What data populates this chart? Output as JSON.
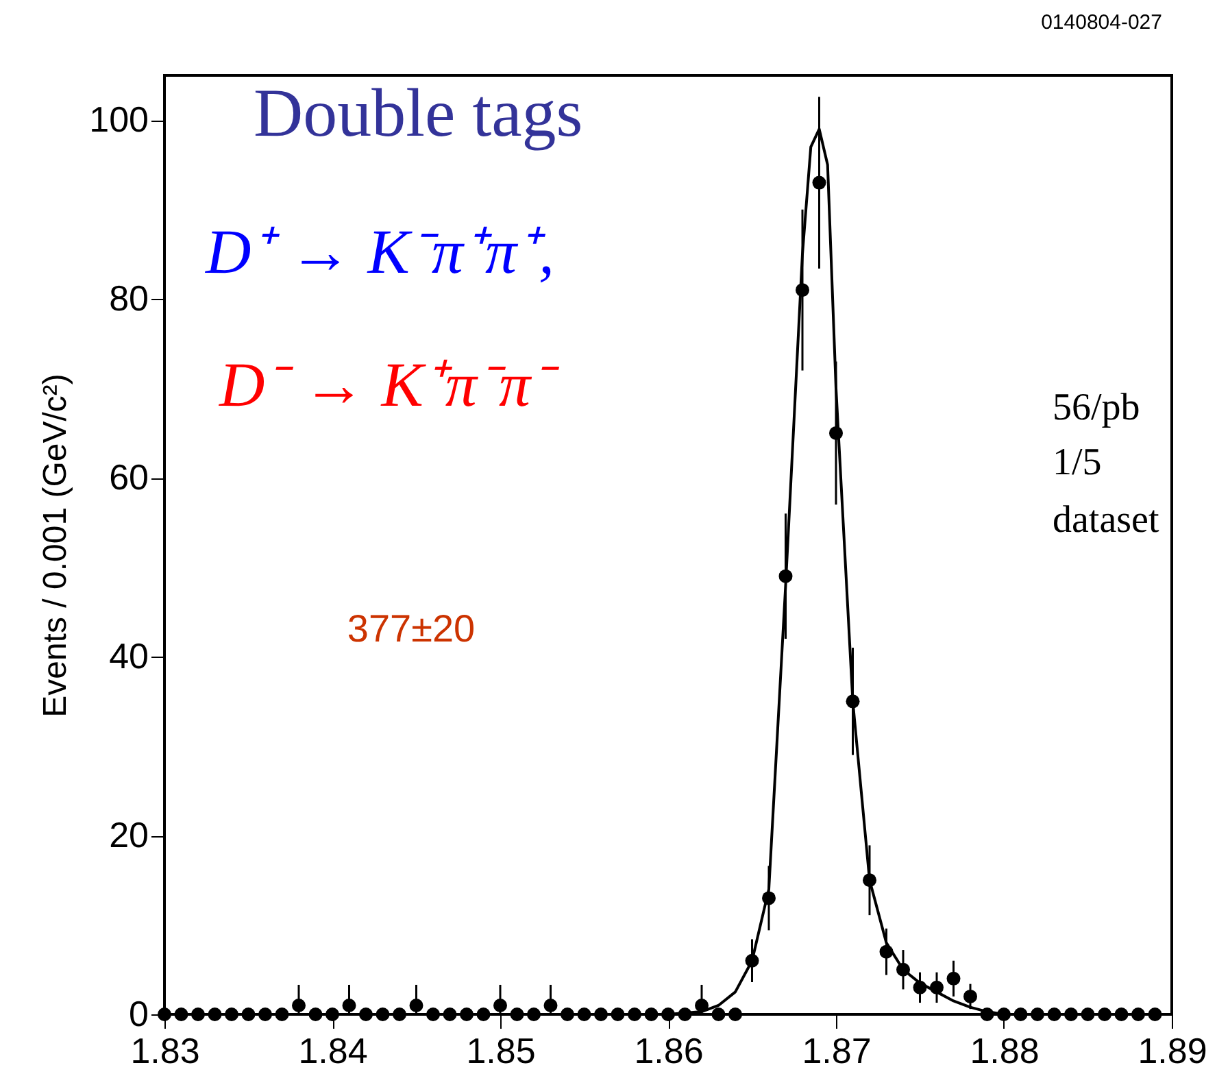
{
  "chart_data": {
    "type": "scatter",
    "ylabel": "Events / 0.001 (GeV/c²)",
    "xlim": [
      1.83,
      1.89
    ],
    "xticks": [
      1.83,
      1.84,
      1.85,
      1.86,
      1.87,
      1.88,
      1.89
    ],
    "ylim": [
      0,
      105
    ],
    "yticks": [
      0,
      20,
      40,
      60,
      80,
      100
    ],
    "grid": false,
    "marker": "circle",
    "series": [
      {
        "type": "scatter",
        "color": "#000000",
        "x": [
          1.83,
          1.831,
          1.832,
          1.833,
          1.834,
          1.835,
          1.836,
          1.837,
          1.838,
          1.839,
          1.84,
          1.841,
          1.842,
          1.843,
          1.844,
          1.845,
          1.846,
          1.847,
          1.848,
          1.849,
          1.85,
          1.851,
          1.852,
          1.853,
          1.854,
          1.855,
          1.856,
          1.857,
          1.858,
          1.859,
          1.86,
          1.861,
          1.862,
          1.863,
          1.864,
          1.865,
          1.866,
          1.867,
          1.868,
          1.869,
          1.87,
          1.871,
          1.872,
          1.873,
          1.874,
          1.875,
          1.876,
          1.877,
          1.878,
          1.879,
          1.88,
          1.881,
          1.882,
          1.883,
          1.884,
          1.885,
          1.886,
          1.887,
          1.888,
          1.889
        ],
        "values": [
          0,
          0,
          0,
          0,
          0,
          0,
          0,
          0,
          1,
          0,
          0,
          1,
          0,
          0,
          0,
          1,
          0,
          0,
          0,
          0,
          1,
          0,
          0,
          1,
          0,
          0,
          0,
          0,
          0,
          0,
          0,
          0,
          1,
          0,
          0,
          6,
          13,
          49,
          81,
          93,
          65,
          35,
          15,
          7,
          5,
          3,
          3,
          4,
          2,
          0,
          0,
          0,
          0,
          0,
          0,
          0,
          0,
          0,
          0,
          0
        ],
        "errors": [
          null,
          null,
          null,
          null,
          null,
          null,
          null,
          null,
          [
            0,
            3.3
          ],
          null,
          null,
          [
            0,
            3.3
          ],
          null,
          null,
          null,
          [
            0,
            3.3
          ],
          null,
          null,
          null,
          null,
          [
            0,
            3.3
          ],
          null,
          null,
          [
            0,
            3.3
          ],
          null,
          null,
          null,
          null,
          null,
          null,
          null,
          null,
          [
            0,
            3.3
          ],
          null,
          null,
          2.4,
          3.6,
          7,
          9,
          9.6,
          8,
          6,
          3.9,
          2.6,
          2.2,
          1.7,
          1.7,
          2,
          1.4,
          null,
          null,
          null,
          null,
          null,
          null,
          null,
          null,
          null,
          null,
          null
        ]
      },
      {
        "type": "line",
        "color": "#000000",
        "marker": "none",
        "line_style": "solid",
        "x": [
          1.858,
          1.86,
          1.862,
          1.863,
          1.864,
          1.865,
          1.866,
          1.867,
          1.868,
          1.8685,
          1.869,
          1.8695,
          1.87,
          1.871,
          1.872,
          1.873,
          1.874,
          1.875,
          1.876,
          1.877,
          1.878,
          1.879,
          1.88
        ],
        "values": [
          0,
          0,
          0.3,
          1,
          2.5,
          6,
          14,
          48,
          85,
          97,
          99,
          95,
          70,
          35,
          15,
          8,
          5,
          3.5,
          2.5,
          1.5,
          0.8,
          0.3,
          0
        ]
      }
    ],
    "annotations": [
      "Double tags",
      "D⁺ → K⁻π⁺π⁺,",
      "D⁻ → K⁺π⁻π⁻",
      "377±20",
      "56/pb",
      "1/5",
      "dataset",
      "0140804-027"
    ]
  }
}
